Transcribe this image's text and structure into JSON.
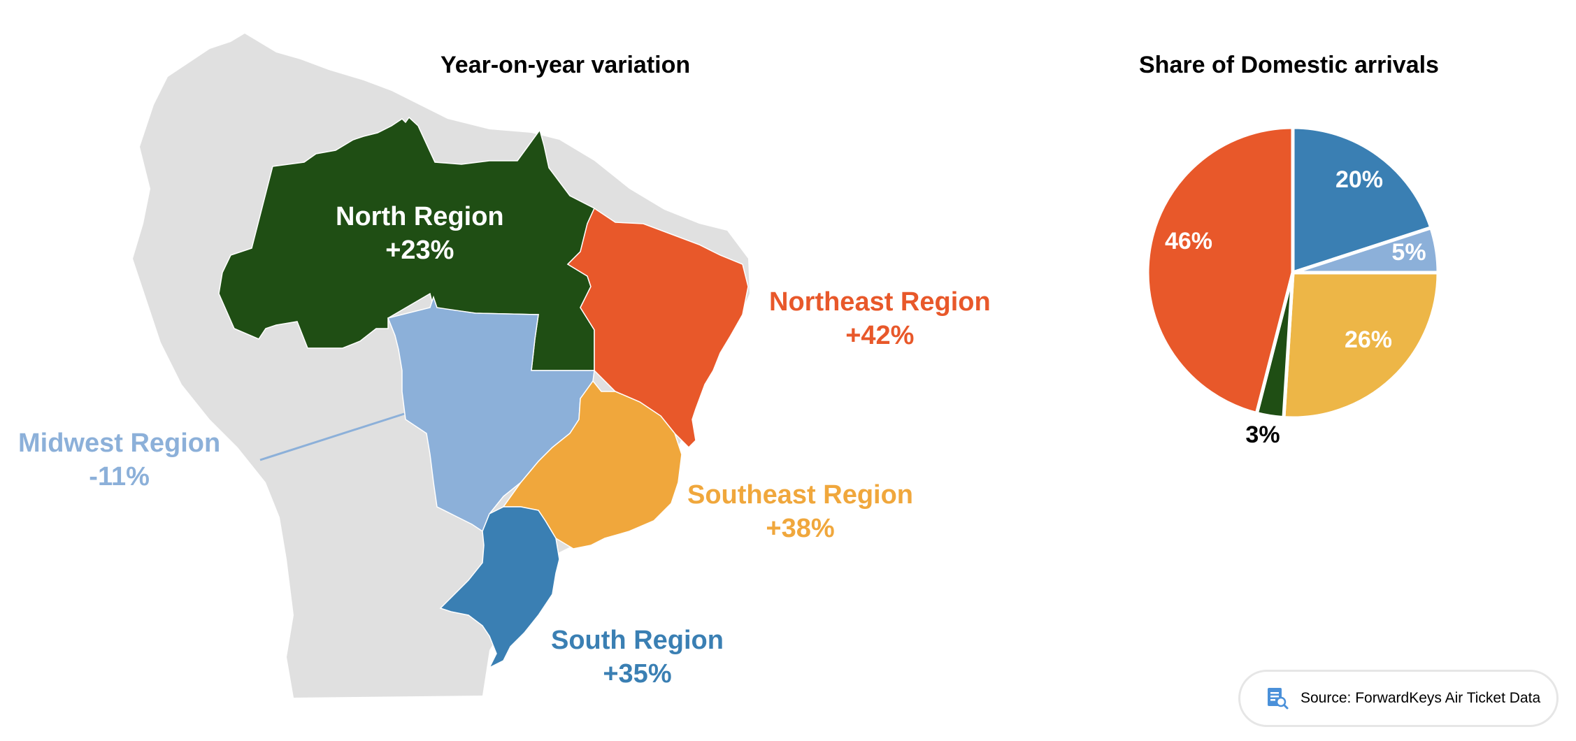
{
  "map": {
    "title": "Year-on-year variation",
    "regions": [
      {
        "name": "North Region",
        "change": "+23%",
        "color": "#1f4e14"
      },
      {
        "name": "Northeast Region",
        "change": "+42%",
        "color": "#e8582a"
      },
      {
        "name": "Midwest Region",
        "change": "-11%",
        "color": "#8cb0d9"
      },
      {
        "name": "Southeast Region",
        "change": "+38%",
        "color": "#f0a73c"
      },
      {
        "name": "South Region",
        "change": "+35%",
        "color": "#3a7fb3"
      }
    ],
    "land_color": "#e0e0e0"
  },
  "chart_data": {
    "type": "pie",
    "title": "Share of Domestic arrivals",
    "slices": [
      {
        "label": "20%",
        "value": 20,
        "color": "#3a7fb3"
      },
      {
        "label": "5%",
        "value": 5,
        "color": "#8cb0d9"
      },
      {
        "label": "26%",
        "value": 26,
        "color": "#edb647"
      },
      {
        "label": "3%",
        "value": 3,
        "color": "#1f4e14"
      },
      {
        "label": "46%",
        "value": 46,
        "color": "#e8582a"
      }
    ]
  },
  "source": {
    "icon": "document-search-icon",
    "text": "Source: ForwardKeys Air Ticket Data"
  }
}
